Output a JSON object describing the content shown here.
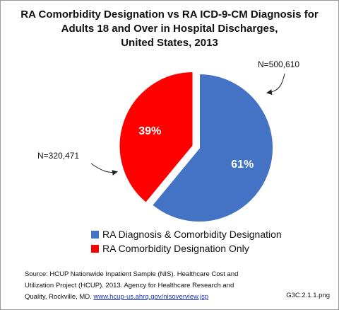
{
  "chart_data": {
    "type": "pie",
    "title_lines": [
      "RA Comorbidity Designation vs RA ICD-9-CM Diagnosis for",
      "Adults 18 and Over in Hospital Discharges,",
      "United States, 2013"
    ],
    "slices": [
      {
        "label": "RA Diagnosis & Comorbidity Designation",
        "value": 61,
        "display": "61%",
        "count_label": "N=500,610",
        "color": "#4472c4"
      },
      {
        "label": "RA Comorbidity Designation Only",
        "value": 39,
        "display": "39%",
        "count_label": "N=320,471",
        "color": "#ff0000",
        "exploded": true
      }
    ],
    "legend_position": "bottom"
  },
  "source": {
    "text": "Source: HCUP Nationwide Inpatient Sample (NIS). Healthcare Cost and Utilization Project (HCUP). 2013. Agency for Healthcare Research and Quality, Rockville, MD.",
    "link_text": "www.hcup-us.ahrq.gov/nisoverview.jsp"
  },
  "figure_id": "G3C.2.1.1.png"
}
